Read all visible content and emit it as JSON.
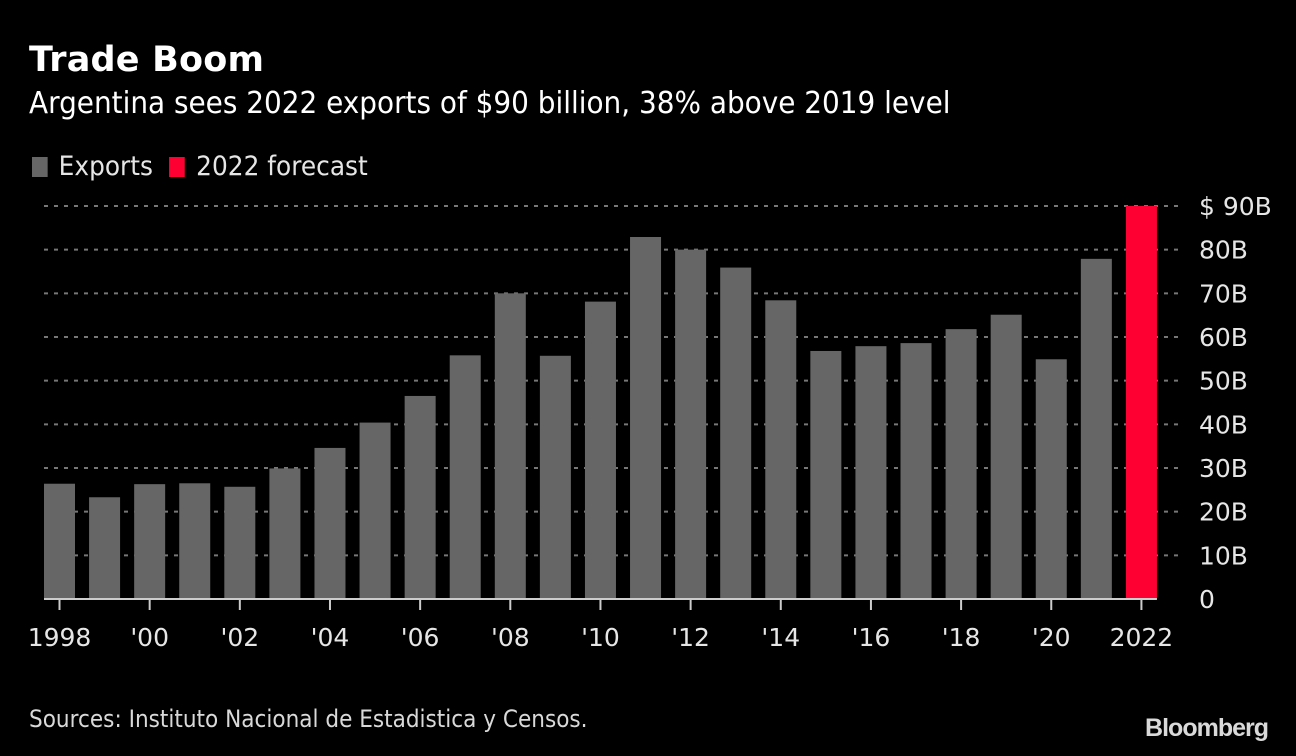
{
  "header": {
    "title": "Trade Boom",
    "subtitle": "Argentina sees 2022 exports of $90 billion, 38% above 2019 level"
  },
  "legend": [
    {
      "label": "Exports",
      "color": "#666666"
    },
    {
      "label": "2022 forecast",
      "color": "#ff0033"
    }
  ],
  "footer": {
    "source": "Sources: Instituto Nacional de Estadistica y Censos.",
    "brand": "Bloomberg"
  },
  "chart_data": {
    "type": "bar",
    "title": "Trade Boom",
    "subtitle": "Argentina sees 2022 exports of $90 billion, 38% above 2019 level",
    "xlabel": "",
    "ylabel": "",
    "categories": [
      "1998",
      "1999",
      "2000",
      "2001",
      "2002",
      "2003",
      "2004",
      "2005",
      "2006",
      "2007",
      "2008",
      "2009",
      "2010",
      "2011",
      "2012",
      "2013",
      "2014",
      "2015",
      "2016",
      "2017",
      "2018",
      "2019",
      "2020",
      "2021",
      "2022"
    ],
    "series": [
      {
        "name": "Exports",
        "color": "#666666",
        "values": [
          26.4,
          23.3,
          26.3,
          26.5,
          25.7,
          29.9,
          34.6,
          40.4,
          46.5,
          55.8,
          70.0,
          55.7,
          68.1,
          82.9,
          80.0,
          75.9,
          68.4,
          56.8,
          57.9,
          58.6,
          61.8,
          65.1,
          54.9,
          77.9,
          null
        ]
      },
      {
        "name": "2022 forecast",
        "color": "#ff0033",
        "values": [
          null,
          null,
          null,
          null,
          null,
          null,
          null,
          null,
          null,
          null,
          null,
          null,
          null,
          null,
          null,
          null,
          null,
          null,
          null,
          null,
          null,
          null,
          null,
          null,
          90.0
        ]
      }
    ],
    "ylim": [
      0,
      90
    ],
    "yticks": [
      0,
      10,
      20,
      30,
      40,
      50,
      60,
      70,
      80,
      90
    ],
    "ytick_labels": [
      "0",
      "10B",
      "20B",
      "30B",
      "40B",
      "50B",
      "60B",
      "70B",
      "80B",
      "$ 90B"
    ],
    "xtick_labels": [
      {
        "category": "1998",
        "label": "1998"
      },
      {
        "category": "2000",
        "label": "'00"
      },
      {
        "category": "2002",
        "label": "'02"
      },
      {
        "category": "2004",
        "label": "'04"
      },
      {
        "category": "2006",
        "label": "'06"
      },
      {
        "category": "2008",
        "label": "'08"
      },
      {
        "category": "2010",
        "label": "'10"
      },
      {
        "category": "2012",
        "label": "'12"
      },
      {
        "category": "2014",
        "label": "'14"
      },
      {
        "category": "2016",
        "label": "'16"
      },
      {
        "category": "2018",
        "label": "'18"
      },
      {
        "category": "2020",
        "label": "'20"
      },
      {
        "category": "2022",
        "label": "2022"
      }
    ],
    "grid": true,
    "y_axis_position": "right",
    "legend_position": "top-left"
  }
}
